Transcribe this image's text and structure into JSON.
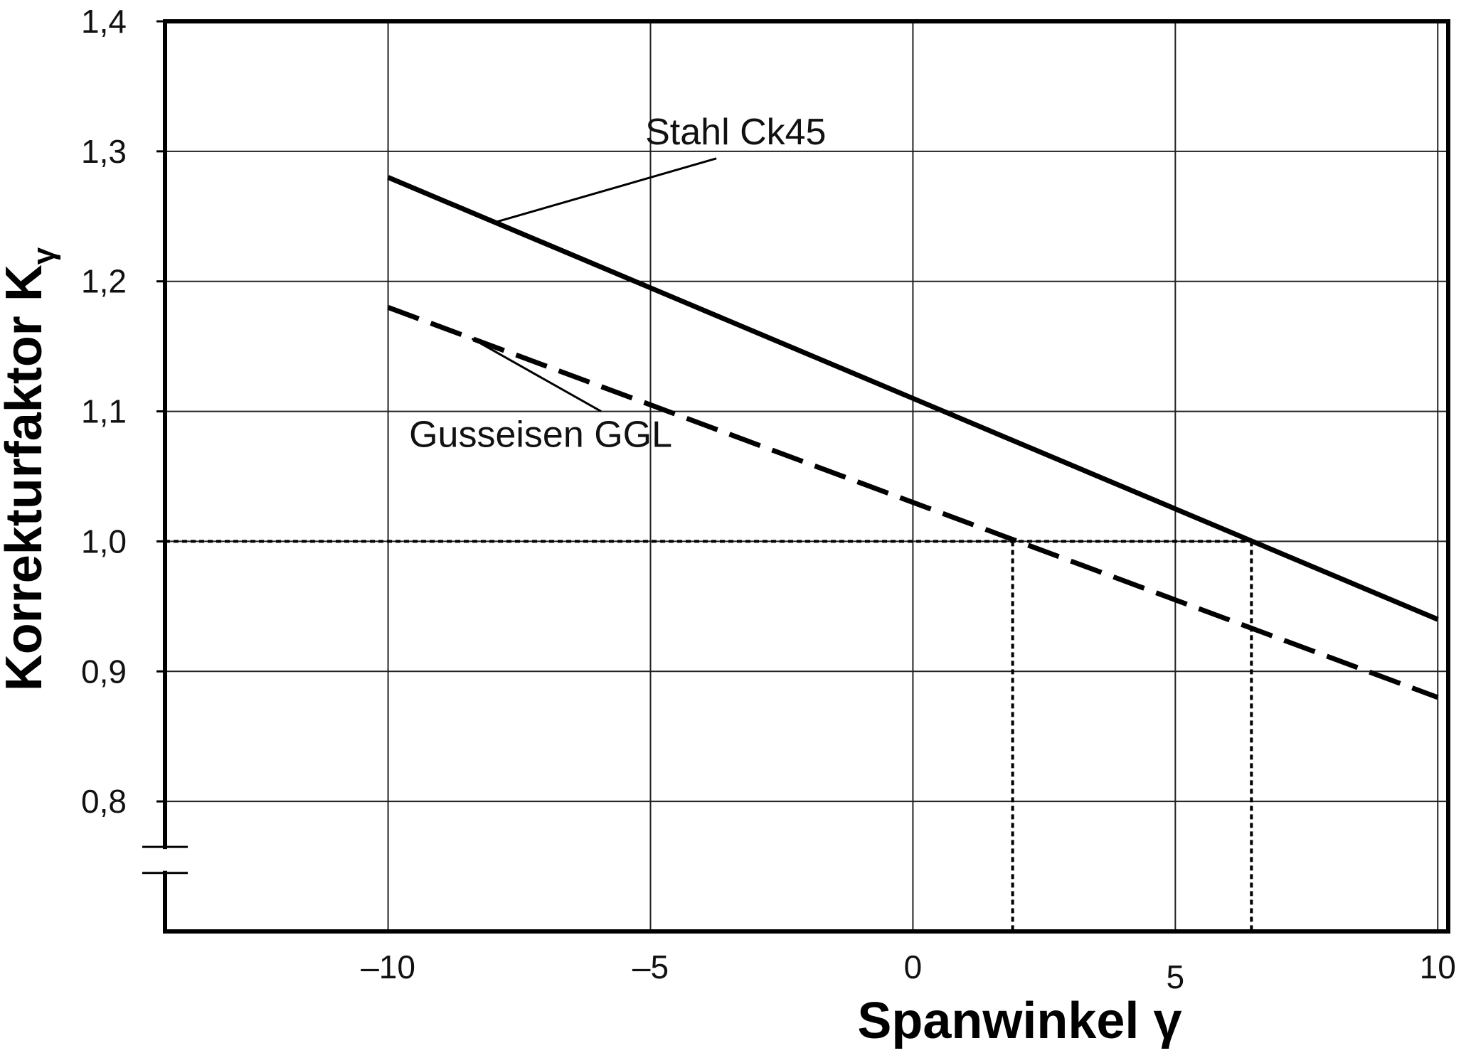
{
  "chart_data": {
    "type": "line",
    "xlabel": "Spanwinkel γ",
    "ylabel": "Korrekturfaktor K",
    "ylabel_subscript": "γ",
    "xlim": [
      -14.25,
      10.2
    ],
    "ylim": [
      0.7,
      1.4
    ],
    "x_ticks": [
      {
        "value": -10,
        "label": "–10"
      },
      {
        "value": -5,
        "label": "–5"
      },
      {
        "value": 0,
        "label": "0"
      },
      {
        "value": 5,
        "label": "5"
      },
      {
        "value": 10,
        "label": "10"
      }
    ],
    "y_ticks": [
      {
        "value": 1.4,
        "label": "1,4"
      },
      {
        "value": 1.3,
        "label": "1,3"
      },
      {
        "value": 1.2,
        "label": "1,2"
      },
      {
        "value": 1.1,
        "label": "1,1"
      },
      {
        "value": 1.0,
        "label": "1,0"
      },
      {
        "value": 0.9,
        "label": "0,9"
      },
      {
        "value": 0.8,
        "label": "0,8"
      }
    ],
    "grid": true,
    "series": [
      {
        "name": "Stahl Ck45",
        "style": "solid",
        "x": [
          -10,
          10
        ],
        "y": [
          1.28,
          0.94
        ]
      },
      {
        "name": "Gusseisen GGL",
        "style": "dashed",
        "x": [
          -10,
          10
        ],
        "y": [
          1.18,
          0.88
        ]
      }
    ],
    "reference": {
      "y": 1.0,
      "x_from": -14.25,
      "intersections": [
        1.9,
        6.45
      ],
      "style": "dotted"
    },
    "annotations": [
      {
        "text": "Stahl Ck45",
        "series": 0,
        "x": -8,
        "y": 1.245,
        "label_x": -5.1,
        "label_y": 1.3
      },
      {
        "text": "Gusseisen GGL",
        "series": 1,
        "x": -8.4,
        "y": 1.156,
        "label_x": -9.6,
        "label_y": 1.1
      }
    ],
    "axis_break": true
  }
}
